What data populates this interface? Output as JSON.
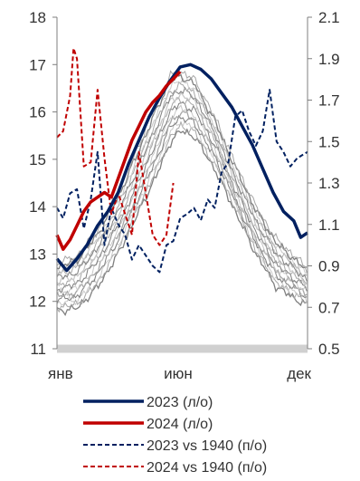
{
  "chart_data": {
    "type": "line",
    "x_ticks": [
      "янв",
      "июн",
      "дек"
    ],
    "x_range": [
      1,
      365
    ],
    "y_left": {
      "ticks": [
        "11",
        "12",
        "13",
        "14",
        "15",
        "16",
        "17",
        "18"
      ],
      "min": 11,
      "max": 18
    },
    "y_right": {
      "ticks": [
        "0.5",
        "0.7",
        "0.9",
        "1.1",
        "1.3",
        "1.5",
        "1.7",
        "1.9",
        "2.1"
      ],
      "min": 0.5,
      "max": 2.1
    },
    "legend_position": "bottom",
    "background_series": {
      "color": "#a6a6a6",
      "axis": "left",
      "count": 14,
      "x": [
        1,
        30,
        60,
        90,
        120,
        150,
        165,
        180,
        200,
        230,
        260,
        290,
        320,
        365
      ],
      "lower_values": [
        11.8,
        11.85,
        12.3,
        13.0,
        13.9,
        14.8,
        15.35,
        15.6,
        15.5,
        14.8,
        13.9,
        13.0,
        12.3,
        11.9
      ],
      "upper_values": [
        12.8,
        12.95,
        13.5,
        14.3,
        15.3,
        16.3,
        16.75,
        16.85,
        16.7,
        15.9,
        14.9,
        14.0,
        13.3,
        12.7
      ]
    },
    "series": [
      {
        "name": "2023 (л/о)",
        "axis": "left",
        "style": "solid",
        "color": "#002060",
        "x": [
          1,
          15,
          30,
          45,
          60,
          75,
          90,
          105,
          120,
          135,
          150,
          165,
          180,
          195,
          210,
          225,
          240,
          255,
          270,
          285,
          300,
          315,
          330,
          345,
          355,
          365
        ],
        "y": [
          12.9,
          12.65,
          12.9,
          13.2,
          13.6,
          13.9,
          14.3,
          14.9,
          15.4,
          15.9,
          16.3,
          16.65,
          16.95,
          17.0,
          16.9,
          16.7,
          16.4,
          16.1,
          15.7,
          15.3,
          14.8,
          14.3,
          13.9,
          13.7,
          13.35,
          13.45
        ]
      },
      {
        "name": "2024 (л/о)",
        "axis": "left",
        "style": "solid",
        "color": "#c00000",
        "x": [
          1,
          10,
          20,
          30,
          40,
          50,
          60,
          70,
          80,
          90,
          100,
          110,
          120,
          130,
          140,
          150,
          160,
          170,
          180
        ],
        "y": [
          13.4,
          13.1,
          13.3,
          13.6,
          13.9,
          14.1,
          14.2,
          14.3,
          14.2,
          14.6,
          15.0,
          15.4,
          15.7,
          16.0,
          16.2,
          16.35,
          16.55,
          16.7,
          16.85
        ]
      },
      {
        "name": "2023 vs 1940 (п/о)",
        "axis": "right",
        "style": "dashed",
        "color": "#002060",
        "x": [
          1,
          10,
          20,
          30,
          40,
          50,
          60,
          70,
          80,
          90,
          100,
          110,
          120,
          130,
          140,
          150,
          160,
          170,
          180,
          190,
          200,
          210,
          220,
          230,
          240,
          250,
          260,
          270,
          280,
          290,
          300,
          310,
          320,
          330,
          340,
          350,
          365
        ],
        "y": [
          1.18,
          1.13,
          1.25,
          1.27,
          1.08,
          1.22,
          1.45,
          1.0,
          1.18,
          1.1,
          1.05,
          0.93,
          1.0,
          0.95,
          0.9,
          0.87,
          1.0,
          1.02,
          1.13,
          1.15,
          1.18,
          1.12,
          1.22,
          1.18,
          1.35,
          1.4,
          1.62,
          1.65,
          1.55,
          1.48,
          1.55,
          1.75,
          1.5,
          1.45,
          1.38,
          1.42,
          1.45
        ]
      },
      {
        "name": "2024 vs 1940 (п/о)",
        "axis": "right",
        "style": "dashed",
        "color": "#c00000",
        "x": [
          1,
          10,
          20,
          25,
          30,
          40,
          50,
          60,
          70,
          80,
          90,
          100,
          110,
          120,
          130,
          140,
          150,
          160,
          170
        ],
        "y": [
          1.52,
          1.55,
          1.72,
          1.95,
          1.9,
          1.38,
          1.4,
          1.75,
          1.42,
          1.15,
          1.25,
          1.15,
          1.05,
          1.45,
          1.25,
          1.05,
          1.0,
          1.05,
          1.3
        ]
      }
    ]
  }
}
